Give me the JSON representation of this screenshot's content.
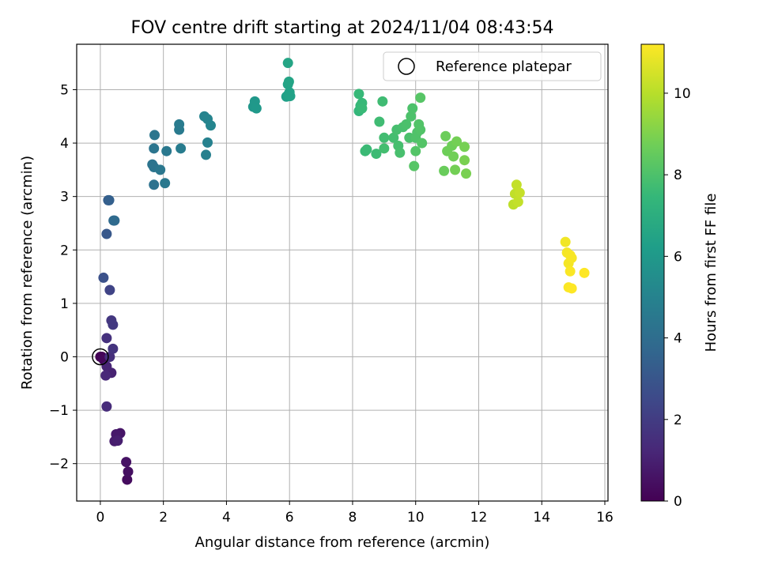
{
  "chart_data": {
    "type": "scatter",
    "title": "FOV centre drift starting at 2024/11/04 08:43:54",
    "xlabel": "Angular distance from reference (arcmin)",
    "ylabel": "Rotation from reference (arcmin)",
    "xlim": [
      -0.75,
      16.1
    ],
    "ylim": [
      -2.7,
      5.85
    ],
    "xticks": [
      0,
      2,
      4,
      6,
      8,
      10,
      12,
      14,
      16
    ],
    "yticks": [
      -2,
      -1,
      0,
      1,
      2,
      3,
      4,
      5
    ],
    "grid": true,
    "legend": {
      "position": "top-right",
      "entries": [
        "Reference platepar"
      ]
    },
    "colorbar": {
      "label": "Hours from first FF file",
      "colormap": "viridis",
      "range": [
        0,
        11.2
      ],
      "ticks": [
        0,
        2,
        4,
        6,
        8,
        10
      ],
      "colors": [
        "#440154",
        "#482878",
        "#3e4989",
        "#31688e",
        "#26828e",
        "#1f9e89",
        "#35b779",
        "#6ece58",
        "#b5de2b",
        "#fde725"
      ]
    },
    "reference_point": {
      "x": 0,
      "y": 0
    },
    "points": [
      [
        0.0,
        0.0,
        0.0
      ],
      [
        0.05,
        0.0,
        0.1
      ],
      [
        0.1,
        -0.05,
        0.2
      ],
      [
        0.85,
        -2.3,
        0.35
      ],
      [
        0.88,
        -2.15,
        0.45
      ],
      [
        0.82,
        -1.97,
        0.55
      ],
      [
        0.63,
        -1.43,
        0.65
      ],
      [
        0.5,
        -1.45,
        0.75
      ],
      [
        0.45,
        -1.58,
        0.85
      ],
      [
        0.55,
        -1.57,
        0.95
      ],
      [
        0.35,
        -0.3,
        1.05
      ],
      [
        0.2,
        -0.18,
        1.15
      ],
      [
        0.17,
        -0.35,
        1.25
      ],
      [
        0.2,
        -0.93,
        1.4
      ],
      [
        0.3,
        0.0,
        1.5
      ],
      [
        0.2,
        0.35,
        1.6
      ],
      [
        0.4,
        0.15,
        1.7
      ],
      [
        0.35,
        0.68,
        1.8
      ],
      [
        0.4,
        0.6,
        1.9
      ],
      [
        0.3,
        1.25,
        2.3
      ],
      [
        0.1,
        1.48,
        2.8
      ],
      [
        0.2,
        2.3,
        3.1
      ],
      [
        0.25,
        2.93,
        3.3
      ],
      [
        0.28,
        2.93,
        3.4
      ],
      [
        0.42,
        2.55,
        3.8
      ],
      [
        0.45,
        2.55,
        3.9
      ],
      [
        1.7,
        3.22,
        4.2
      ],
      [
        1.65,
        3.6,
        4.3
      ],
      [
        1.7,
        3.55,
        4.3
      ],
      [
        1.7,
        3.9,
        4.35
      ],
      [
        1.72,
        4.15,
        4.4
      ],
      [
        1.9,
        3.5,
        4.45
      ],
      [
        2.05,
        3.25,
        4.5
      ],
      [
        2.1,
        3.85,
        4.5
      ],
      [
        2.5,
        4.25,
        4.6
      ],
      [
        2.5,
        4.35,
        4.65
      ],
      [
        2.55,
        3.9,
        4.7
      ],
      [
        3.35,
        3.78,
        4.9
      ],
      [
        3.4,
        4.01,
        4.95
      ],
      [
        3.3,
        4.5,
        5.0
      ],
      [
        3.4,
        4.45,
        5.05
      ],
      [
        3.5,
        4.33,
        5.1
      ],
      [
        4.85,
        4.68,
        5.9
      ],
      [
        4.9,
        4.78,
        5.95
      ],
      [
        4.95,
        4.65,
        6.0
      ],
      [
        5.9,
        4.87,
        6.3
      ],
      [
        5.95,
        4.9,
        6.35
      ],
      [
        6.0,
        4.95,
        6.4
      ],
      [
        6.02,
        4.88,
        6.4
      ],
      [
        5.95,
        5.1,
        6.45
      ],
      [
        5.98,
        5.15,
        6.5
      ],
      [
        5.95,
        5.5,
        6.55
      ],
      [
        8.2,
        4.6,
        7.4
      ],
      [
        8.25,
        4.7,
        7.45
      ],
      [
        8.3,
        4.75,
        7.5
      ],
      [
        8.2,
        4.92,
        7.5
      ],
      [
        8.3,
        4.65,
        7.55
      ],
      [
        8.4,
        3.85,
        7.6
      ],
      [
        8.45,
        3.88,
        7.6
      ],
      [
        8.75,
        3.8,
        7.65
      ],
      [
        8.85,
        4.4,
        7.7
      ],
      [
        8.95,
        4.78,
        7.7
      ],
      [
        9.0,
        4.1,
        7.75
      ],
      [
        9.0,
        3.9,
        7.8
      ],
      [
        9.3,
        4.1,
        7.8
      ],
      [
        9.4,
        4.25,
        7.85
      ],
      [
        9.45,
        3.95,
        7.85
      ],
      [
        9.5,
        3.82,
        7.9
      ],
      [
        9.6,
        4.3,
        7.9
      ],
      [
        9.7,
        4.35,
        7.95
      ],
      [
        9.8,
        4.1,
        7.95
      ],
      [
        9.85,
        4.5,
        8.0
      ],
      [
        9.9,
        4.65,
        8.0
      ],
      [
        10.0,
        4.1,
        8.05
      ],
      [
        10.05,
        4.2,
        8.05
      ],
      [
        10.1,
        4.35,
        8.1
      ],
      [
        10.15,
        4.25,
        8.1
      ],
      [
        10.2,
        4.0,
        8.15
      ],
      [
        10.0,
        3.85,
        8.15
      ],
      [
        9.95,
        3.57,
        8.2
      ],
      [
        10.15,
        4.85,
        8.2
      ],
      [
        10.9,
        3.48,
        8.6
      ],
      [
        10.95,
        4.13,
        8.65
      ],
      [
        11.0,
        3.85,
        8.7
      ],
      [
        11.15,
        3.95,
        8.7
      ],
      [
        11.2,
        3.75,
        8.75
      ],
      [
        11.25,
        3.5,
        8.8
      ],
      [
        11.3,
        4.03,
        8.8
      ],
      [
        11.55,
        3.93,
        8.85
      ],
      [
        11.55,
        3.68,
        8.9
      ],
      [
        11.6,
        3.43,
        8.9
      ],
      [
        13.1,
        2.85,
        10.1
      ],
      [
        13.15,
        3.05,
        10.15
      ],
      [
        13.2,
        3.22,
        10.2
      ],
      [
        13.25,
        2.9,
        10.2
      ],
      [
        13.3,
        3.07,
        10.25
      ],
      [
        14.75,
        2.15,
        11.0
      ],
      [
        14.8,
        1.95,
        11.05
      ],
      [
        14.85,
        1.75,
        11.05
      ],
      [
        14.9,
        1.9,
        11.1
      ],
      [
        14.95,
        1.85,
        11.1
      ],
      [
        14.9,
        1.6,
        11.15
      ],
      [
        14.85,
        1.3,
        11.15
      ],
      [
        14.95,
        1.28,
        11.2
      ],
      [
        15.35,
        1.57,
        11.2
      ]
    ]
  }
}
